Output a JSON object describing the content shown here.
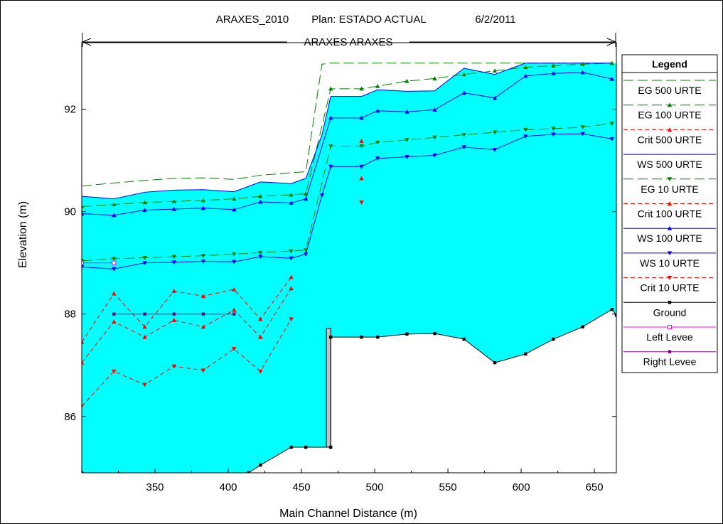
{
  "chart_data": {
    "type": "line",
    "header": {
      "project": "ARAXES_2010",
      "plan": "Plan: ESTADO ACTUAL",
      "date": "6/2/2011"
    },
    "reach_label": "ARAXES ARAXES",
    "xlabel": "Main Channel Distance (m)",
    "ylabel": "Elevation (m)",
    "xlim": [
      300,
      665
    ],
    "ylim": [
      84.9,
      93.3
    ],
    "x_ticks": [
      350,
      400,
      450,
      500,
      550,
      600,
      650
    ],
    "y_ticks": [
      86,
      88,
      90,
      92
    ],
    "grid": false,
    "legend_position": "right",
    "legend": {
      "title": "Legend",
      "entries": [
        "EG  500 URTE",
        "EG  100 URTE",
        "Crit  500 URTE",
        "WS  500 URTE",
        "EG  10 URTE",
        "Crit  100 URTE",
        "WS  100 URTE",
        "WS  10 URTE",
        "Crit  10 URTE",
        "Ground",
        "Left Levee",
        "Right Levee"
      ]
    },
    "series": [
      {
        "name": "EG  500 URTE",
        "color": "#008000",
        "dash": "long",
        "marker": "none",
        "x": [
          300,
          322,
          343,
          363,
          383,
          404,
          422,
          443,
          453,
          464,
          470,
          491,
          502,
          522,
          541,
          561,
          582,
          603,
          622,
          642,
          662
        ],
        "y": [
          90.5,
          90.56,
          90.61,
          90.65,
          90.66,
          90.63,
          90.71,
          90.76,
          90.78,
          92.88,
          92.9,
          92.9,
          92.9,
          92.9,
          92.9,
          92.9,
          92.9,
          92.9,
          92.9,
          92.9,
          92.9
        ]
      },
      {
        "name": "EG  100 URTE",
        "color": "#008000",
        "dash": "long",
        "marker": "tri-up",
        "x": [
          300,
          322,
          343,
          363,
          383,
          404,
          422,
          443,
          453,
          470,
          491,
          502,
          522,
          541,
          561,
          582,
          603,
          622,
          642,
          662
        ],
        "y": [
          90.1,
          90.14,
          90.18,
          90.2,
          90.22,
          90.25,
          90.3,
          90.33,
          90.35,
          92.4,
          92.4,
          92.45,
          92.55,
          92.6,
          92.68,
          92.75,
          92.82,
          92.85,
          92.88,
          92.9
        ]
      },
      {
        "name": "Crit  500 URTE",
        "color": "#ff0000",
        "dash": "short",
        "marker": "tri-up",
        "x": [
          300,
          322,
          343,
          363,
          383,
          404,
          422,
          443
        ],
        "y": [
          87.45,
          88.4,
          87.75,
          88.45,
          88.35,
          88.48,
          87.9,
          88.72
        ]
      },
      {
        "name": "WS  500 URTE",
        "color": "#0000ff",
        "dash": "solid",
        "marker": "none",
        "x": [
          300,
          322,
          343,
          363,
          383,
          404,
          422,
          443,
          453,
          464,
          470,
          491,
          502,
          522,
          541,
          561,
          582,
          603,
          622,
          642,
          662
        ],
        "y": [
          90.3,
          90.25,
          90.38,
          90.42,
          90.43,
          90.39,
          90.58,
          90.55,
          90.65,
          91.5,
          92.25,
          92.25,
          92.38,
          92.35,
          92.36,
          92.8,
          92.68,
          92.9,
          92.9,
          92.9,
          92.9
        ]
      },
      {
        "name": "EG  10 URTE",
        "color": "#008000",
        "dash": "long",
        "marker": "tri-down",
        "x": [
          300,
          322,
          343,
          363,
          383,
          404,
          422,
          443,
          453,
          470,
          491,
          502,
          522,
          541,
          561,
          582,
          603,
          622,
          642,
          662
        ],
        "y": [
          89.04,
          89.08,
          89.1,
          89.12,
          89.14,
          89.17,
          89.2,
          89.23,
          89.25,
          91.28,
          91.28,
          91.35,
          91.4,
          91.45,
          91.5,
          91.55,
          91.6,
          91.62,
          91.65,
          91.72
        ]
      },
      {
        "name": "Crit  100 URTE",
        "color": "#ff0000",
        "dash": "short",
        "marker": "tri-up",
        "x": [
          300,
          322,
          343,
          363,
          383,
          404,
          422,
          443
        ],
        "y": [
          87.05,
          87.85,
          87.55,
          87.88,
          87.75,
          88.08,
          87.55,
          88.5
        ]
      },
      {
        "name": "WS  100 URTE",
        "color": "#0000ff",
        "dash": "solid",
        "marker": "tri-up",
        "x": [
          300,
          322,
          343,
          363,
          383,
          404,
          422,
          443,
          453,
          470,
          491,
          502,
          522,
          541,
          561,
          582,
          603,
          622,
          642,
          662
        ],
        "y": [
          89.96,
          89.93,
          90.03,
          90.05,
          90.07,
          90.04,
          90.19,
          90.17,
          90.25,
          91.83,
          91.83,
          91.97,
          91.95,
          91.99,
          92.32,
          92.22,
          92.65,
          92.7,
          92.72,
          92.59
        ]
      },
      {
        "name": "WS  10 URTE",
        "color": "#0000ff",
        "dash": "solid",
        "marker": "tri-down",
        "x": [
          300,
          322,
          343,
          363,
          383,
          404,
          422,
          443,
          453,
          464,
          470,
          491,
          502,
          522,
          541,
          561,
          582,
          603,
          622,
          642,
          662
        ],
        "y": [
          88.92,
          88.88,
          89.0,
          89.01,
          89.03,
          89.02,
          89.12,
          89.09,
          89.17,
          90.32,
          90.88,
          90.88,
          91.04,
          91.07,
          91.1,
          91.26,
          91.21,
          91.47,
          91.51,
          91.52,
          91.42
        ]
      },
      {
        "name": "Crit  10 URTE",
        "color": "#ff0000",
        "dash": "short",
        "marker": "tri-down",
        "x": [
          300,
          322,
          343,
          363,
          383,
          404,
          422,
          443
        ],
        "y": [
          86.2,
          86.88,
          86.62,
          86.98,
          86.9,
          87.32,
          86.88,
          87.9
        ]
      },
      {
        "name": "Ground",
        "color": "#000000",
        "dash": "solid",
        "marker": "square",
        "x": [
          300,
          414,
          422,
          443,
          453,
          470,
          470,
          491,
          502,
          522,
          541,
          561,
          582,
          603,
          622,
          642,
          662,
          665
        ],
        "y": [
          84.9,
          84.9,
          85.05,
          85.4,
          85.4,
          85.4,
          87.55,
          87.55,
          87.55,
          87.61,
          87.62,
          87.51,
          87.05,
          87.22,
          87.51,
          87.75,
          88.09,
          87.98
        ]
      },
      {
        "name": "Left Levee",
        "color": "#ff00ff",
        "dash": "solid",
        "marker": "square-open",
        "x": [
          300,
          322
        ],
        "y": [
          89.0,
          89.0
        ]
      },
      {
        "name": "Right Levee",
        "color": "#800080",
        "dash": "solid",
        "marker": "square",
        "x": [
          322,
          343,
          363,
          383,
          404
        ],
        "y": [
          88.0,
          88.0,
          88.0,
          88.0,
          88.0
        ]
      }
    ],
    "isolated_points": [
      {
        "series": "Crit  500 URTE",
        "x": 491,
        "y": 91.38,
        "color": "#ff0000",
        "marker": "tri-up"
      },
      {
        "series": "Crit  100 URTE",
        "x": 491,
        "y": 90.65,
        "color": "#ff0000",
        "marker": "tri-up"
      },
      {
        "series": "Crit  10 URTE",
        "x": 491,
        "y": 90.18,
        "color": "#ff0000",
        "marker": "tri-down"
      }
    ],
    "fill_colors": {
      "water": "#00ffff",
      "wall": "#c0c0c0"
    }
  }
}
